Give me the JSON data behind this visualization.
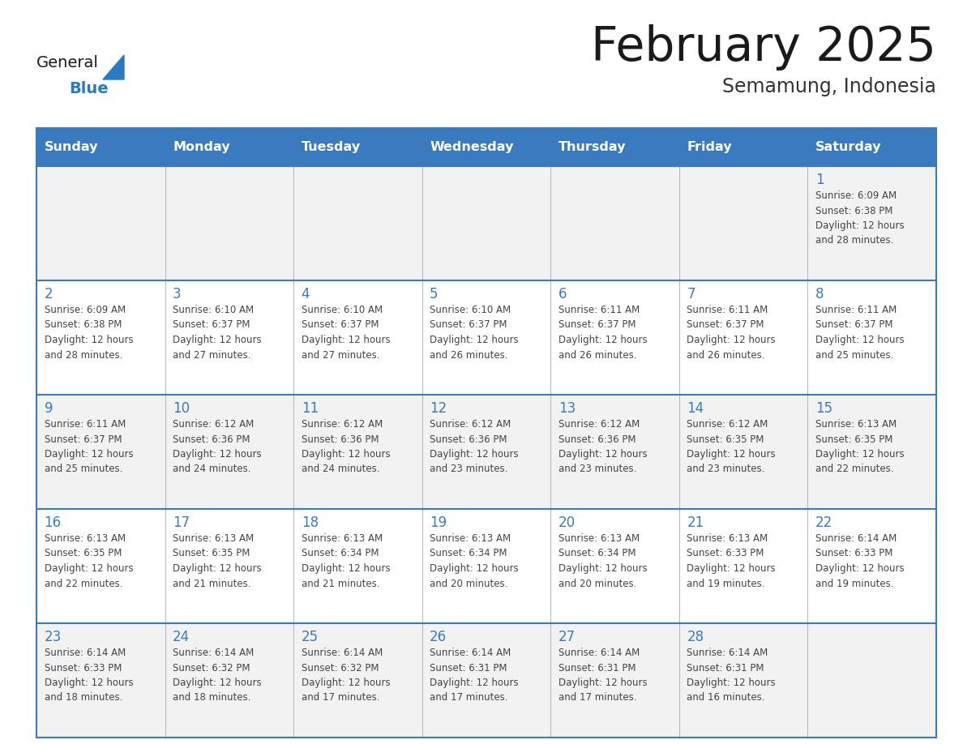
{
  "title": "February 2025",
  "subtitle": "Semamung, Indonesia",
  "days_of_week": [
    "Sunday",
    "Monday",
    "Tuesday",
    "Wednesday",
    "Thursday",
    "Friday",
    "Saturday"
  ],
  "header_bg": "#3a7abf",
  "header_text_color": "#ffffff",
  "cell_bg_odd": "#f2f2f2",
  "cell_bg_even": "#ffffff",
  "border_color": "#3a7abf",
  "title_color": "#1a1a1a",
  "subtitle_color": "#333333",
  "day_number_color": "#3a7abf",
  "cell_text_color": "#444444",
  "general_text_color": "#1a1a1a",
  "blue_text_color": "#2a7abf",
  "triangle_color": "#2a7abf",
  "weeks": [
    {
      "days": [
        {
          "date": null,
          "info": null
        },
        {
          "date": null,
          "info": null
        },
        {
          "date": null,
          "info": null
        },
        {
          "date": null,
          "info": null
        },
        {
          "date": null,
          "info": null
        },
        {
          "date": null,
          "info": null
        },
        {
          "date": 1,
          "info": "Sunrise: 6:09 AM\nSunset: 6:38 PM\nDaylight: 12 hours\nand 28 minutes."
        }
      ]
    },
    {
      "days": [
        {
          "date": 2,
          "info": "Sunrise: 6:09 AM\nSunset: 6:38 PM\nDaylight: 12 hours\nand 28 minutes."
        },
        {
          "date": 3,
          "info": "Sunrise: 6:10 AM\nSunset: 6:37 PM\nDaylight: 12 hours\nand 27 minutes."
        },
        {
          "date": 4,
          "info": "Sunrise: 6:10 AM\nSunset: 6:37 PM\nDaylight: 12 hours\nand 27 minutes."
        },
        {
          "date": 5,
          "info": "Sunrise: 6:10 AM\nSunset: 6:37 PM\nDaylight: 12 hours\nand 26 minutes."
        },
        {
          "date": 6,
          "info": "Sunrise: 6:11 AM\nSunset: 6:37 PM\nDaylight: 12 hours\nand 26 minutes."
        },
        {
          "date": 7,
          "info": "Sunrise: 6:11 AM\nSunset: 6:37 PM\nDaylight: 12 hours\nand 26 minutes."
        },
        {
          "date": 8,
          "info": "Sunrise: 6:11 AM\nSunset: 6:37 PM\nDaylight: 12 hours\nand 25 minutes."
        }
      ]
    },
    {
      "days": [
        {
          "date": 9,
          "info": "Sunrise: 6:11 AM\nSunset: 6:37 PM\nDaylight: 12 hours\nand 25 minutes."
        },
        {
          "date": 10,
          "info": "Sunrise: 6:12 AM\nSunset: 6:36 PM\nDaylight: 12 hours\nand 24 minutes."
        },
        {
          "date": 11,
          "info": "Sunrise: 6:12 AM\nSunset: 6:36 PM\nDaylight: 12 hours\nand 24 minutes."
        },
        {
          "date": 12,
          "info": "Sunrise: 6:12 AM\nSunset: 6:36 PM\nDaylight: 12 hours\nand 23 minutes."
        },
        {
          "date": 13,
          "info": "Sunrise: 6:12 AM\nSunset: 6:36 PM\nDaylight: 12 hours\nand 23 minutes."
        },
        {
          "date": 14,
          "info": "Sunrise: 6:12 AM\nSunset: 6:35 PM\nDaylight: 12 hours\nand 23 minutes."
        },
        {
          "date": 15,
          "info": "Sunrise: 6:13 AM\nSunset: 6:35 PM\nDaylight: 12 hours\nand 22 minutes."
        }
      ]
    },
    {
      "days": [
        {
          "date": 16,
          "info": "Sunrise: 6:13 AM\nSunset: 6:35 PM\nDaylight: 12 hours\nand 22 minutes."
        },
        {
          "date": 17,
          "info": "Sunrise: 6:13 AM\nSunset: 6:35 PM\nDaylight: 12 hours\nand 21 minutes."
        },
        {
          "date": 18,
          "info": "Sunrise: 6:13 AM\nSunset: 6:34 PM\nDaylight: 12 hours\nand 21 minutes."
        },
        {
          "date": 19,
          "info": "Sunrise: 6:13 AM\nSunset: 6:34 PM\nDaylight: 12 hours\nand 20 minutes."
        },
        {
          "date": 20,
          "info": "Sunrise: 6:13 AM\nSunset: 6:34 PM\nDaylight: 12 hours\nand 20 minutes."
        },
        {
          "date": 21,
          "info": "Sunrise: 6:13 AM\nSunset: 6:33 PM\nDaylight: 12 hours\nand 19 minutes."
        },
        {
          "date": 22,
          "info": "Sunrise: 6:14 AM\nSunset: 6:33 PM\nDaylight: 12 hours\nand 19 minutes."
        }
      ]
    },
    {
      "days": [
        {
          "date": 23,
          "info": "Sunrise: 6:14 AM\nSunset: 6:33 PM\nDaylight: 12 hours\nand 18 minutes."
        },
        {
          "date": 24,
          "info": "Sunrise: 6:14 AM\nSunset: 6:32 PM\nDaylight: 12 hours\nand 18 minutes."
        },
        {
          "date": 25,
          "info": "Sunrise: 6:14 AM\nSunset: 6:32 PM\nDaylight: 12 hours\nand 17 minutes."
        },
        {
          "date": 26,
          "info": "Sunrise: 6:14 AM\nSunset: 6:31 PM\nDaylight: 12 hours\nand 17 minutes."
        },
        {
          "date": 27,
          "info": "Sunrise: 6:14 AM\nSunset: 6:31 PM\nDaylight: 12 hours\nand 17 minutes."
        },
        {
          "date": 28,
          "info": "Sunrise: 6:14 AM\nSunset: 6:31 PM\nDaylight: 12 hours\nand 16 minutes."
        },
        {
          "date": null,
          "info": null
        }
      ]
    }
  ]
}
